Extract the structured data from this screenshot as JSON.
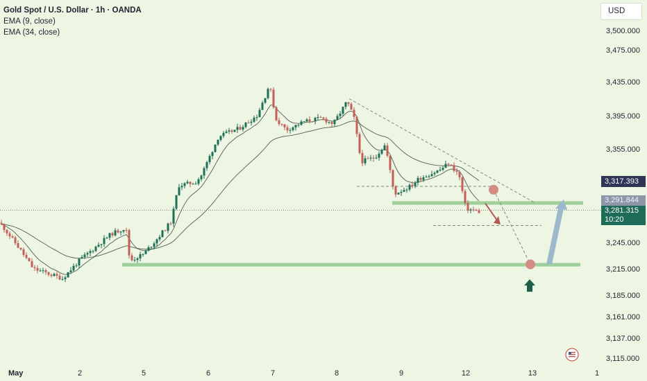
{
  "legend": {
    "title": "Gold Spot / U.S. Dollar · 1h · OANDA",
    "ema_fast": "EMA (9, close)",
    "ema_slow": "EMA (34, close)"
  },
  "currency_button": "USD",
  "price_tags": {
    "last_high": "3,317.393",
    "resistance_zone": "3,291.844",
    "current_price": "3,281.315",
    "countdown": "10:20"
  },
  "colors": {
    "background": "#edf5e3",
    "candle_up": "#1f6f56",
    "candle_down": "#c0605a",
    "ema_line": "#36443a",
    "zone_green": "#9fcf9a",
    "marker_circle": "#d28c83",
    "arrow_down": "#b55a55",
    "arrow_up": "#9db7cc",
    "arrow_buy": "#1e5f4a"
  },
  "chart_data": {
    "type": "line",
    "title": "Gold Spot / U.S. Dollar · 1h · OANDA",
    "x_ticks": [
      "May",
      "2",
      "5",
      "6",
      "7",
      "8",
      "9",
      "12",
      "13",
      "1"
    ],
    "y_ticks": [
      "3,500.000",
      "3,475.000",
      "3,435.000",
      "3,395.000",
      "3,355.000",
      "3,245.000",
      "3,215.000",
      "3,185.000",
      "3,161.000",
      "3,137.000",
      "3,115.000"
    ],
    "y_tick_values": [
      3500,
      3475,
      3435,
      3395,
      3355,
      3245,
      3215,
      3185,
      3161,
      3137,
      3115
    ],
    "ylim": [
      3107,
      3519
    ],
    "series": [
      {
        "name": "Gold Spot / U.S. Dollar",
        "x": [
          "May",
          "2",
          "5",
          "6",
          "7",
          "8",
          "9",
          "12"
        ],
        "values": [
          3255,
          3204,
          3235,
          3290,
          3405,
          3383,
          3302,
          3281
        ]
      },
      {
        "name": "EMA (9, close)",
        "x": [
          "May",
          "2",
          "5",
          "6",
          "7",
          "8",
          "9",
          "12"
        ],
        "values": [
          3257,
          3215,
          3245,
          3285,
          3398,
          3385,
          3316,
          3292
        ]
      },
      {
        "name": "EMA (34, close)",
        "x": [
          "May",
          "2",
          "5",
          "6",
          "7",
          "8",
          "9",
          "12"
        ],
        "values": [
          3262,
          3230,
          3248,
          3268,
          3375,
          3383,
          3338,
          3305
        ]
      }
    ],
    "levels": [
      {
        "name": "resistance",
        "value": 3291.844
      },
      {
        "name": "support",
        "value": 3220
      }
    ],
    "grid": false,
    "legend": "top-left"
  }
}
